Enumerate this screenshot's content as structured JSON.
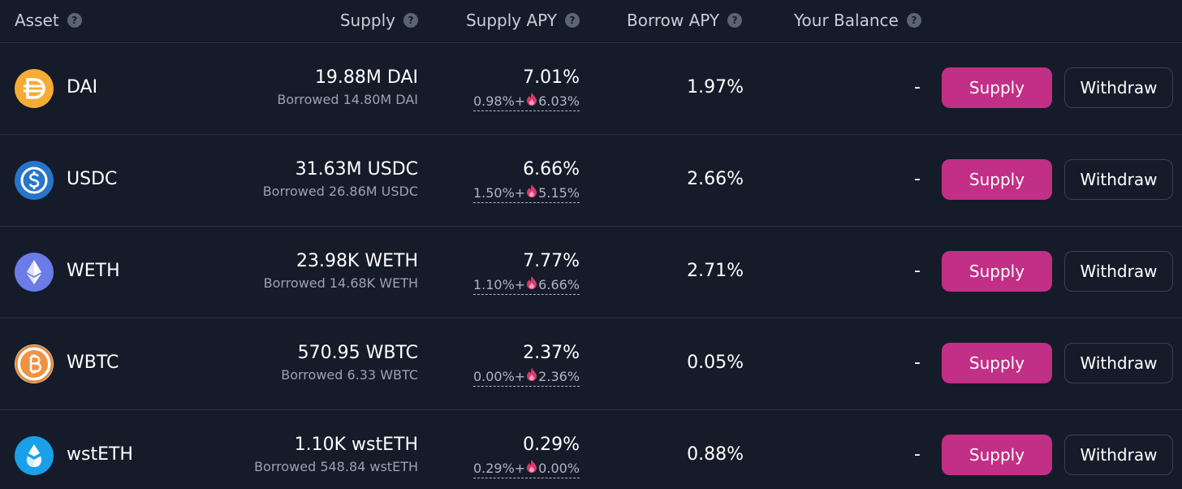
{
  "header": {
    "asset": "Asset",
    "supply": "Supply",
    "supply_apy": "Supply APY",
    "borrow_apy": "Borrow APY",
    "your_balance": "Your Balance",
    "help_glyph": "?"
  },
  "buttons": {
    "supply": "Supply",
    "withdraw": "Withdraw"
  },
  "colors": {
    "background": "#161b2a",
    "supply_button": "#c22f86",
    "divider": "#2a3142"
  },
  "assets": [
    {
      "name": "DAI",
      "icon": "dai-icon",
      "supply": "19.88M DAI",
      "borrowed": "Borrowed 14.80M DAI",
      "supply_apy": "7.01%",
      "apy_base": "0.98%",
      "apy_plus": "+",
      "apy_reward": "6.03%",
      "borrow_apy": "1.97%",
      "balance": "-"
    },
    {
      "name": "USDC",
      "icon": "usdc-icon",
      "supply": "31.63M USDC",
      "borrowed": "Borrowed 26.86M USDC",
      "supply_apy": "6.66%",
      "apy_base": "1.50%",
      "apy_plus": "+",
      "apy_reward": "5.15%",
      "borrow_apy": "2.66%",
      "balance": "-"
    },
    {
      "name": "WETH",
      "icon": "weth-icon",
      "supply": "23.98K WETH",
      "borrowed": "Borrowed 14.68K WETH",
      "supply_apy": "7.77%",
      "apy_base": "1.10%",
      "apy_plus": "+",
      "apy_reward": "6.66%",
      "borrow_apy": "2.71%",
      "balance": "-"
    },
    {
      "name": "WBTC",
      "icon": "wbtc-icon",
      "supply": "570.95 WBTC",
      "borrowed": "Borrowed 6.33 WBTC",
      "supply_apy": "2.37%",
      "apy_base": "0.00%",
      "apy_plus": "+",
      "apy_reward": "2.36%",
      "borrow_apy": "0.05%",
      "balance": "-"
    },
    {
      "name": "wstETH",
      "icon": "wsteth-icon",
      "supply": "1.10K wstETH",
      "borrowed": "Borrowed 548.84 wstETH",
      "supply_apy": "0.29%",
      "apy_base": "0.29%",
      "apy_plus": "+",
      "apy_reward": "0.00%",
      "borrow_apy": "0.88%",
      "balance": "-"
    }
  ]
}
